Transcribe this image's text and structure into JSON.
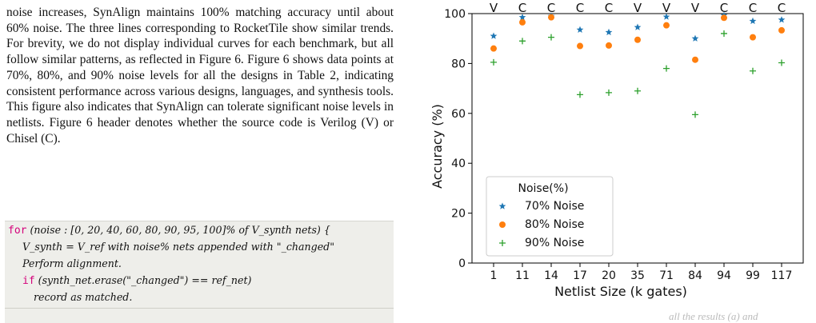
{
  "text": {
    "paragraph": "noise increases, SynAlign maintains 100% matching accuracy until about 60% noise. The three lines corresponding to RocketTile show similar trends. For brevity, we do not display individual curves for each benchmark, but all follow similar patterns, as reflected in Figure 6. Figure 6 shows data points at 70%, 80%, and 90% noise levels for all the designs in Table 2, indicating consistent performance across various designs, languages, and synthesis tools. This figure also indicates that SynAlign can tolerate significant noise levels in netlists. Figure 6 header denotes whether the source code is Verilog (V) or Chisel (C)."
  },
  "code": {
    "line1_kw": "for",
    "line1": "(noise : [0, 20, 40, 60, 80, 90, 95, 100]% of V_synth nets) {",
    "line2": "V_synth = V_ref with noise% nets appended with \"_changed\"",
    "line3": "Perform alignment.",
    "line4_kw": "if",
    "line4": "(synth_net.erase(\"_changed\") == ref_net)",
    "line5": "record as matched."
  },
  "footer_fragment": "all the results (a) and",
  "chart_data": {
    "type": "scatter",
    "categories": [
      "1",
      "11",
      "14",
      "17",
      "20",
      "35",
      "71",
      "84",
      "94",
      "99",
      "117"
    ],
    "header_labels": [
      "V",
      "C",
      "C",
      "C",
      "C",
      "V",
      "V",
      "V",
      "C",
      "C",
      "C"
    ],
    "xlabel": "Netlist Size (k gates)",
    "ylabel": "Accuracy (%)",
    "ylim": [
      0,
      100
    ],
    "yticks": [
      0,
      20,
      40,
      60,
      80,
      100
    ],
    "legend_title": "Noise(%)",
    "legend_position": "lower-left",
    "grid": false,
    "series": [
      {
        "name": "70% Noise",
        "marker": "star",
        "color": "#1f77b4",
        "values": [
          91,
          98.5,
          99,
          93.5,
          92.5,
          94.5,
          98.7,
          90,
          99.3,
          97,
          97.5
        ]
      },
      {
        "name": "80% Noise",
        "marker": "circle",
        "color": "#ff7f0e",
        "values": [
          86,
          96.5,
          98.5,
          87,
          87.2,
          89.5,
          95.3,
          81.5,
          98.3,
          90.5,
          93.3
        ]
      },
      {
        "name": "90% Noise",
        "marker": "plus",
        "color": "#2ca02c",
        "values": [
          80.5,
          89,
          90.5,
          67.5,
          68.3,
          69,
          78,
          59.5,
          92,
          77,
          80.3
        ]
      }
    ]
  }
}
